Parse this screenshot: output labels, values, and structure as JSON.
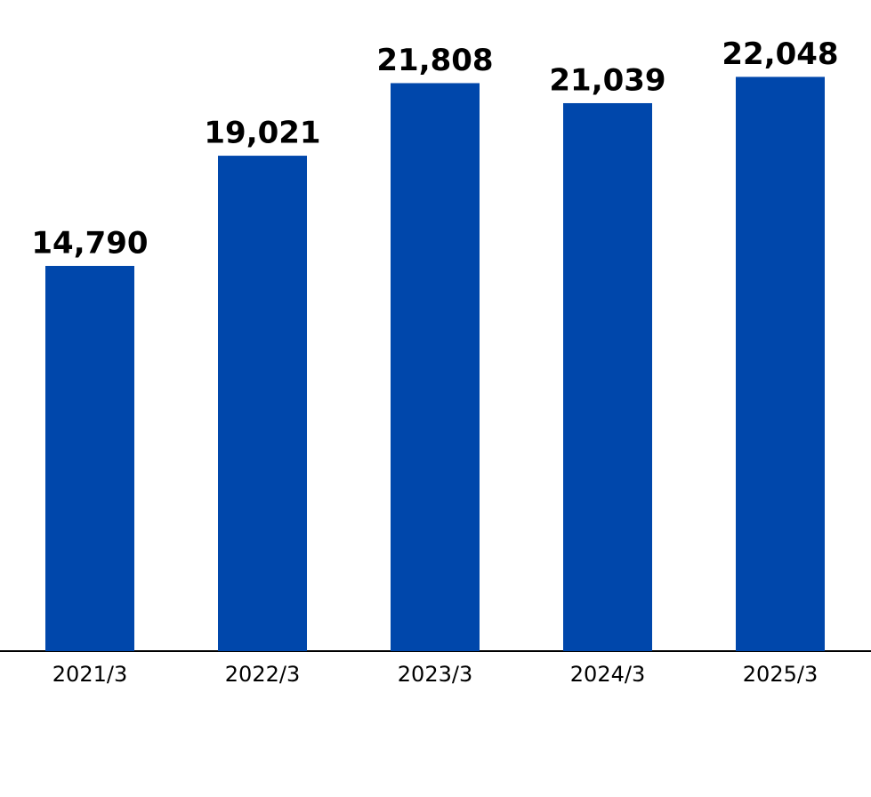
{
  "chart_data": {
    "type": "bar",
    "categories": [
      "2021/3",
      "2022/3",
      "2023/3",
      "2024/3",
      "2025/3"
    ],
    "values": [
      14790,
      19021,
      21808,
      21039,
      22048
    ],
    "value_labels": [
      "14,790",
      "19,021",
      "21,808",
      "21,039",
      "22,048"
    ],
    "color": "#0047ab",
    "ylim": [
      0,
      25000
    ]
  }
}
